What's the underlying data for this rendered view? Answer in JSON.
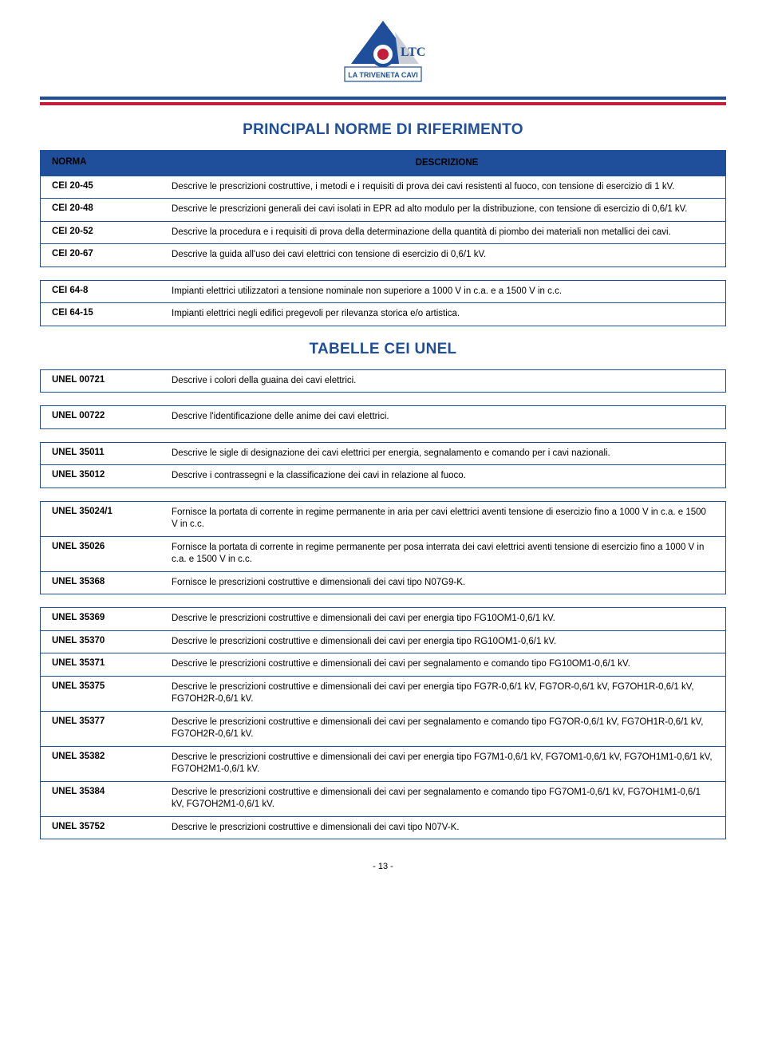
{
  "colors": {
    "brand_blue": "#1f4e9b",
    "brand_red": "#c41e3a",
    "text": "#000000",
    "background": "#ffffff"
  },
  "logo": {
    "company_text": "LA TRIVENETA CAVI",
    "short": "LTC"
  },
  "section1": {
    "title": "PRINCIPALI NORME DI RIFERIMENTO",
    "header_left": "NORMA",
    "header_right": "DESCRIZIONE",
    "groups": [
      {
        "rows": [
          {
            "norma": "CEI 20-45",
            "desc": "Descrive le prescrizioni costruttive, i metodi e i requisiti di prova dei cavi resistenti al fuoco, con tensione di esercizio di 1 kV."
          },
          {
            "norma": "CEI 20-48",
            "desc": "Descrive le prescrizioni generali dei cavi isolati in EPR ad alto modulo per la distribuzione, con tensione di esercizio di 0,6/1 kV."
          },
          {
            "norma": "CEI 20-52",
            "desc": "Descrive la procedura e i requisiti di prova della determinazione della quantità di piombo dei materiali non metallici dei cavi."
          },
          {
            "norma": "CEI 20-67",
            "desc": "Descrive la guida all'uso dei cavi elettrici con tensione di esercizio di 0,6/1 kV."
          }
        ]
      },
      {
        "rows": [
          {
            "norma": "CEI 64-8",
            "desc": "Impianti elettrici utilizzatori a tensione nominale non superiore a 1000 V in c.a. e a 1500 V in c.c."
          },
          {
            "norma": "CEI 64-15",
            "desc": "Impianti elettrici negli edifici pregevoli per rilevanza storica e/o artistica."
          }
        ]
      }
    ]
  },
  "section2": {
    "title": "TABELLE CEI UNEL",
    "groups": [
      {
        "rows": [
          {
            "norma": "UNEL 00721",
            "desc": "Descrive i colori della guaina dei cavi elettrici."
          }
        ]
      },
      {
        "rows": [
          {
            "norma": "UNEL 00722",
            "desc": "Descrive l'identificazione delle anime dei cavi elettrici."
          }
        ]
      },
      {
        "rows": [
          {
            "norma": "UNEL 35011",
            "desc": "Descrive le sigle di designazione dei cavi elettrici per energia, segnalamento e comando per i cavi nazionali."
          },
          {
            "norma": "UNEL 35012",
            "desc": "Descrive i contrassegni e la classificazione dei cavi in relazione al fuoco."
          }
        ]
      },
      {
        "rows": [
          {
            "norma": "UNEL 35024/1",
            "desc": "Fornisce la portata di corrente in regime permanente in aria per cavi elettrici aventi tensione di esercizio fino a 1000 V in c.a. e 1500 V in c.c."
          },
          {
            "norma": "UNEL 35026",
            "desc": "Fornisce la portata di corrente in regime permanente per posa interrata dei cavi elettrici aventi tensione di esercizio fino a 1000 V in c.a. e 1500 V in c.c."
          },
          {
            "norma": "UNEL 35368",
            "desc": "Fornisce le prescrizioni costruttive e dimensionali dei cavi tipo N07G9-K."
          }
        ]
      },
      {
        "rows": [
          {
            "norma": "UNEL 35369",
            "desc": "Descrive le prescrizioni costruttive e dimensionali dei cavi per energia tipo FG10OM1-0,6/1 kV."
          },
          {
            "norma": "UNEL 35370",
            "desc": "Descrive le prescrizioni costruttive e dimensionali dei cavi per energia tipo RG10OM1-0,6/1 kV."
          },
          {
            "norma": "UNEL 35371",
            "desc": "Descrive le prescrizioni costruttive e dimensionali dei cavi per segnalamento e comando tipo FG10OM1-0,6/1 kV."
          },
          {
            "norma": "UNEL 35375",
            "desc": "Descrive le prescrizioni costruttive e dimensionali dei cavi per energia tipo FG7R-0,6/1 kV, FG7OR-0,6/1 kV, FG7OH1R-0,6/1 kV, FG7OH2R-0,6/1 kV."
          },
          {
            "norma": "UNEL 35377",
            "desc": "Descrive le prescrizioni costruttive e dimensionali dei cavi per segnalamento e comando tipo FG7OR-0,6/1 kV, FG7OH1R-0,6/1 kV, FG7OH2R-0,6/1 kV."
          },
          {
            "norma": "UNEL 35382",
            "desc": "Descrive le prescrizioni costruttive e dimensionali dei cavi per energia tipo FG7M1-0,6/1 kV, FG7OM1-0,6/1 kV, FG7OH1M1-0,6/1 kV, FG7OH2M1-0,6/1 kV."
          },
          {
            "norma": "UNEL 35384",
            "desc": "Descrive le prescrizioni costruttive e dimensionali dei cavi per segnalamento e comando tipo FG7OM1-0,6/1 kV, FG7OH1M1-0,6/1 kV, FG7OH2M1-0,6/1 kV."
          },
          {
            "norma": "UNEL 35752",
            "desc": "Descrive le prescrizioni costruttive e dimensionali dei cavi tipo N07V-K."
          }
        ]
      }
    ]
  },
  "page_number": "- 13 -"
}
